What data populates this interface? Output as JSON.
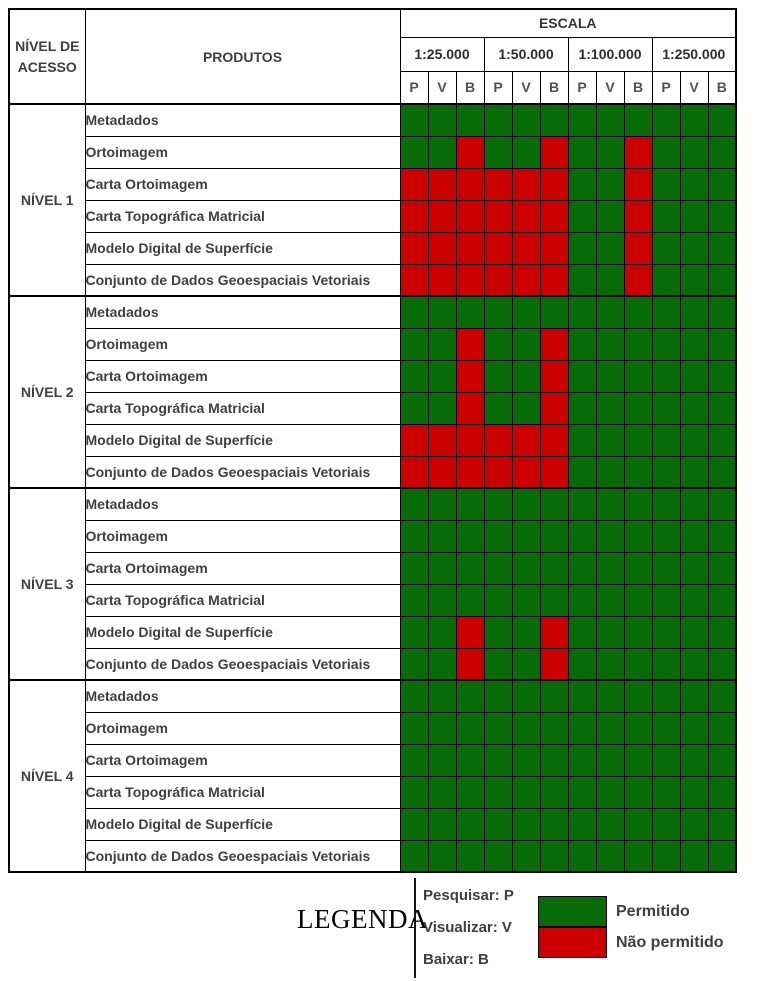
{
  "colors": {
    "permitted": "#086d08",
    "not_permitted": "#cc0000",
    "border": "#000000"
  },
  "table": {
    "nivel_header": "NÍVEL DE\nACESSO",
    "produtos_header": "PRODUTOS",
    "escala_header": "ESCALA",
    "scales": [
      "1:25.000",
      "1:50.000",
      "1:100.000",
      "1:250.000"
    ],
    "access_labels": [
      "P",
      "V",
      "B"
    ],
    "levels": [
      {
        "label": "NÍVEL 1",
        "rows": [
          {
            "product": "Metadados",
            "cells": "GGGGGGGGGGGG"
          },
          {
            "product": "Ortoimagem",
            "cells": "GGRGGRGGRGGG"
          },
          {
            "product": "Carta Ortoimagem",
            "cells": "RRRRRRGGRGGG"
          },
          {
            "product": "Carta Topográfica Matricial",
            "cells": "RRRRRRGGRGGG"
          },
          {
            "product": "Modelo Digital de Superfície",
            "cells": "RRRRRRGGRGGG"
          },
          {
            "product": "Conjunto de Dados Geoespaciais Vetoriais",
            "cells": "RRRRRRGGRGGG"
          }
        ]
      },
      {
        "label": "NÍVEL 2",
        "rows": [
          {
            "product": "Metadados",
            "cells": "GGGGGGGGGGGG"
          },
          {
            "product": "Ortoimagem",
            "cells": "GGRGGRGGGGGG"
          },
          {
            "product": "Carta Ortoimagem",
            "cells": "GGRGGRGGGGGG"
          },
          {
            "product": "Carta Topográfica Matricial",
            "cells": "GGRGGRGGGGGG"
          },
          {
            "product": "Modelo Digital de Superfície",
            "cells": "RRRRRRGGGGGG"
          },
          {
            "product": "Conjunto de Dados Geoespaciais Vetoriais",
            "cells": "RRRRRRGGGGGG"
          }
        ]
      },
      {
        "label": "NÍVEL 3",
        "rows": [
          {
            "product": "Metadados",
            "cells": "GGGGGGGGGGGG"
          },
          {
            "product": "Ortoimagem",
            "cells": "GGGGGGGGGGGG"
          },
          {
            "product": "Carta Ortoimagem",
            "cells": "GGGGGGGGGGGG"
          },
          {
            "product": "Carta Topográfica Matricial",
            "cells": "GGGGGGGGGGGG"
          },
          {
            "product": "Modelo Digital de Superfície",
            "cells": "GGRGGRGGGGGG"
          },
          {
            "product": "Conjunto de Dados Geoespaciais Vetoriais",
            "cells": "GGRGGRGGGGGG"
          }
        ]
      },
      {
        "label": "NÍVEL 4",
        "rows": [
          {
            "product": "Metadados",
            "cells": "GGGGGGGGGGGG"
          },
          {
            "product": "Ortoimagem",
            "cells": "GGGGGGGGGGGG"
          },
          {
            "product": "Carta Ortoimagem",
            "cells": "GGGGGGGGGGGG"
          },
          {
            "product": "Carta Topográfica Matricial",
            "cells": "GGGGGGGGGGGG"
          },
          {
            "product": "Modelo Digital de Superfície",
            "cells": "GGGGGGGGGGGG"
          },
          {
            "product": "Conjunto de Dados Geoespaciais Vetoriais",
            "cells": "GGGGGGGGGGGG"
          }
        ]
      }
    ]
  },
  "legend": {
    "title": "LEGENDA",
    "codes": [
      "Pesquisar: P",
      "Visualizar: V",
      "Baixar: B"
    ],
    "items": [
      {
        "label": "Permitido",
        "color": "#086d08"
      },
      {
        "label": "Não permitido",
        "color": "#cc0000"
      }
    ]
  }
}
